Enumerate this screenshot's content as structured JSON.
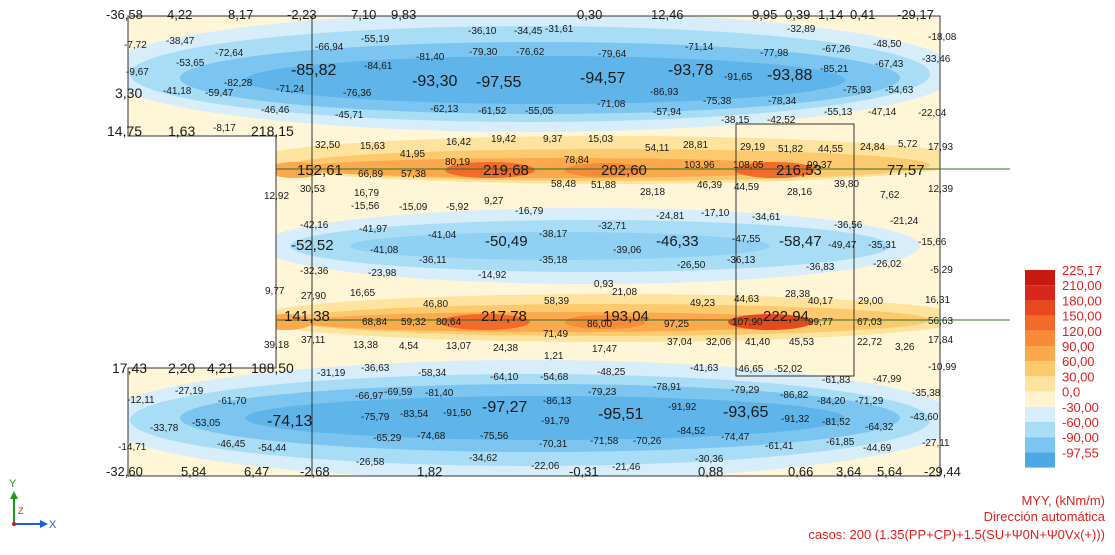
{
  "legend": {
    "entries": [
      {
        "value": "225,17",
        "color": "#c81812"
      },
      {
        "value": "210,00",
        "color": "#d7261a"
      },
      {
        "value": "180,00",
        "color": "#e8481e"
      },
      {
        "value": "150,00",
        "color": "#f36a2a"
      },
      {
        "value": "120,00",
        "color": "#f98a38"
      },
      {
        "value": "90,00",
        "color": "#fba94c"
      },
      {
        "value": "60,00",
        "color": "#fcca6c"
      },
      {
        "value": "30,00",
        "color": "#fde39e"
      },
      {
        "value": "0,0",
        "color": "#fff3cf"
      },
      {
        "value": "-30,00",
        "color": "#d7eefa"
      },
      {
        "value": "-60,00",
        "color": "#a9ddf6"
      },
      {
        "value": "-90,00",
        "color": "#7cc5f0"
      },
      {
        "value": "-97,55",
        "color": "#4ea8e6"
      }
    ]
  },
  "caption": {
    "line1": "MYY, (kNm/m)",
    "line2": "Dirección automática",
    "line3": "casos: 200 (1.35(PP+CP)+1.5(SU+Ψ0N+Ψ0Vx(+)))"
  },
  "axes": {
    "y_label": "Y",
    "z_label": "Z",
    "x_label": "X"
  },
  "values": [
    [
      "-36,58",
      106,
      19,
      13
    ],
    [
      "4,22",
      167,
      19,
      13
    ],
    [
      "8,17",
      228,
      19,
      13
    ],
    [
      "-2,23",
      287,
      19,
      13
    ],
    [
      "7,10",
      351,
      19,
      13
    ],
    [
      "9,83",
      391,
      19,
      13
    ],
    [
      "0,30",
      577,
      19,
      13
    ],
    [
      "12,46",
      651,
      19,
      13
    ],
    [
      "9,95",
      752,
      19,
      13
    ],
    [
      "0,39",
      785,
      19,
      13
    ],
    [
      "1,14",
      818,
      19,
      13
    ],
    [
      "0,41",
      850,
      19,
      13
    ],
    [
      "-29,17",
      897,
      19,
      13
    ],
    [
      "-36,10",
      468,
      34,
      10
    ],
    [
      "-34,45",
      514,
      34,
      10
    ],
    [
      "-31,61",
      545,
      32,
      10
    ],
    [
      "-32,89",
      787,
      32,
      10
    ],
    [
      "-18,08",
      928,
      40,
      10
    ],
    [
      "-7,72",
      124,
      48,
      10
    ],
    [
      "-38,47",
      166,
      44,
      10
    ],
    [
      "-55,19",
      361,
      42,
      10
    ],
    [
      "-66,94",
      315,
      50,
      10
    ],
    [
      "-72,64",
      215,
      56,
      10
    ],
    [
      "-81,40",
      416,
      60,
      10
    ],
    [
      "-79,30",
      469,
      55,
      10
    ],
    [
      "-76,62",
      516,
      55,
      10
    ],
    [
      "-79,64",
      598,
      57,
      10
    ],
    [
      "-71,14",
      685,
      50,
      10
    ],
    [
      "-77,98",
      760,
      56,
      10
    ],
    [
      "-67,26",
      822,
      52,
      10
    ],
    [
      "-48,50",
      873,
      47,
      10
    ],
    [
      "-53,65",
      176,
      66,
      10
    ],
    [
      "-84,61",
      364,
      69,
      10
    ],
    [
      "-67,43",
      875,
      67,
      10
    ],
    [
      "-33,46",
      922,
      62,
      10
    ],
    [
      "-9,67",
      126,
      75,
      10
    ],
    [
      "-85,82",
      291,
      75,
      16
    ],
    [
      "-93,30",
      412,
      86,
      16
    ],
    [
      "-97,55",
      476,
      87,
      16
    ],
    [
      "-94,57",
      580,
      83,
      16
    ],
    [
      "-93,78",
      668,
      75,
      16
    ],
    [
      "-91,65",
      724,
      80,
      10
    ],
    [
      "-93,88",
      767,
      80,
      16
    ],
    [
      "-85,21",
      820,
      72,
      10
    ],
    [
      "-82,28",
      224,
      86,
      10
    ],
    [
      "-71,24",
      276,
      92,
      10
    ],
    [
      "-76,36",
      343,
      96,
      10
    ],
    [
      "-86,93",
      650,
      95,
      10
    ],
    [
      "-75,93",
      843,
      93,
      10
    ],
    [
      "-54,63",
      885,
      93,
      10
    ],
    [
      "3,30",
      115,
      98,
      14
    ],
    [
      "-41,18",
      163,
      94,
      10
    ],
    [
      "-59,47",
      205,
      96,
      10
    ],
    [
      "-78,34",
      768,
      104,
      10
    ],
    [
      "-46,46",
      261,
      113,
      10
    ],
    [
      "-45,71",
      335,
      118,
      10
    ],
    [
      "-62,13",
      430,
      112,
      10
    ],
    [
      "-61,52",
      478,
      114,
      10
    ],
    [
      "-55,05",
      525,
      114,
      10
    ],
    [
      "-71,08",
      597,
      107,
      10
    ],
    [
      "-75,38",
      703,
      104,
      10
    ],
    [
      "-57,94",
      653,
      115,
      10
    ],
    [
      "-55,13",
      824,
      115,
      10
    ],
    [
      "-47,14",
      868,
      115,
      10
    ],
    [
      "-22,04",
      918,
      116,
      10
    ],
    [
      "-38,15",
      721,
      123,
      10
    ],
    [
      "-42,52",
      767,
      123,
      10
    ],
    [
      "14,75",
      107,
      136,
      14
    ],
    [
      "1,63",
      168,
      136,
      14
    ],
    [
      "-8,17",
      213,
      131,
      10
    ],
    [
      "218,15",
      251,
      136,
      14
    ],
    [
      "32,50",
      315,
      148,
      10
    ],
    [
      "15,63",
      360,
      149,
      10
    ],
    [
      "16,42",
      446,
      145,
      10
    ],
    [
      "19,42",
      491,
      142,
      10
    ],
    [
      "9,37",
      543,
      142,
      10
    ],
    [
      "15,03",
      588,
      142,
      10
    ],
    [
      "54,11",
      645,
      151,
      10
    ],
    [
      "28,81",
      683,
      148,
      10
    ],
    [
      "29,19",
      740,
      150,
      10
    ],
    [
      "51,82",
      778,
      152,
      10
    ],
    [
      "44,55",
      818,
      152,
      10
    ],
    [
      "24,84",
      860,
      150,
      10
    ],
    [
      "5,72",
      898,
      147,
      10
    ],
    [
      "17,93",
      928,
      150,
      10
    ],
    [
      "41,95",
      400,
      157,
      10
    ],
    [
      "80,19",
      445,
      165,
      10
    ],
    [
      "78,84",
      564,
      163,
      10
    ],
    [
      "103,96",
      684,
      168,
      10
    ],
    [
      "108,05",
      733,
      168,
      10
    ],
    [
      "99,37",
      807,
      168,
      10
    ],
    [
      "152,61",
      297,
      175,
      15
    ],
    [
      "66,89",
      358,
      177,
      10
    ],
    [
      "57,38",
      401,
      177,
      10
    ],
    [
      "219,68",
      483,
      175,
      15
    ],
    [
      "202,60",
      601,
      175,
      15
    ],
    [
      "216,53",
      776,
      175,
      15
    ],
    [
      "77,57",
      887,
      175,
      15
    ],
    [
      "30,53",
      300,
      192,
      10
    ],
    [
      "58,48",
      551,
      187,
      10
    ],
    [
      "51,88",
      591,
      188,
      10
    ],
    [
      "28,18",
      640,
      195,
      10
    ],
    [
      "46,39",
      697,
      188,
      10
    ],
    [
      "44,59",
      734,
      190,
      10
    ],
    [
      "28,16",
      787,
      195,
      10
    ],
    [
      "39,80",
      834,
      187,
      10
    ],
    [
      "12,39",
      928,
      192,
      10
    ],
    [
      "12,92",
      264,
      199,
      10
    ],
    [
      "16,79",
      354,
      196,
      10
    ],
    [
      "9,27",
      484,
      204,
      10
    ],
    [
      "7,62",
      880,
      198,
      10
    ],
    [
      "-15,56",
      351,
      209,
      10
    ],
    [
      "-15,09",
      399,
      210,
      10
    ],
    [
      "-5,92",
      446,
      210,
      10
    ],
    [
      "-16,79",
      515,
      214,
      10
    ],
    [
      "-24,81",
      656,
      219,
      10
    ],
    [
      "-17,10",
      701,
      216,
      10
    ],
    [
      "-34,61",
      752,
      220,
      10
    ],
    [
      "-21,24",
      890,
      224,
      10
    ],
    [
      "-42,16",
      300,
      228,
      10
    ],
    [
      "-36,56",
      834,
      228,
      10
    ],
    [
      "-32,71",
      598,
      229,
      10
    ],
    [
      "-41,97",
      359,
      232,
      10
    ],
    [
      "-41,04",
      428,
      238,
      10
    ],
    [
      "-38,17",
      539,
      237,
      10
    ],
    [
      "-52,52",
      291,
      250,
      15
    ],
    [
      "-41,08",
      370,
      253,
      10
    ],
    [
      "-50,49",
      485,
      246,
      15
    ],
    [
      "-39,06",
      613,
      253,
      10
    ],
    [
      "-46,33",
      656,
      246,
      15
    ],
    [
      "-47,55",
      732,
      242,
      10
    ],
    [
      "-58,47",
      779,
      246,
      15
    ],
    [
      "-49,47",
      828,
      248,
      10
    ],
    [
      "-35,31",
      868,
      248,
      10
    ],
    [
      "-15,66",
      918,
      245,
      10
    ],
    [
      "-36,11",
      419,
      263,
      10
    ],
    [
      "-35,18",
      539,
      263,
      10
    ],
    [
      "-26,50",
      677,
      268,
      10
    ],
    [
      "-36,13",
      727,
      263,
      10
    ],
    [
      "-36,83",
      806,
      270,
      10
    ],
    [
      "-26,02",
      873,
      267,
      10
    ],
    [
      "-5,29",
      930,
      273,
      10
    ],
    [
      "-32,36",
      300,
      274,
      10
    ],
    [
      "-23,98",
      368,
      276,
      10
    ],
    [
      "-14,92",
      478,
      278,
      10
    ],
    [
      "0,93",
      594,
      287,
      10
    ],
    [
      "21,08",
      612,
      295,
      10
    ],
    [
      "9,77",
      265,
      294,
      10
    ],
    [
      "27,90",
      301,
      299,
      10
    ],
    [
      "16,65",
      350,
      296,
      10
    ],
    [
      "28,38",
      785,
      297,
      10
    ],
    [
      "29,00",
      858,
      304,
      10
    ],
    [
      "16,31",
      925,
      303,
      10
    ],
    [
      "46,80",
      423,
      307,
      10
    ],
    [
      "58,39",
      544,
      304,
      10
    ],
    [
      "49,23",
      690,
      306,
      10
    ],
    [
      "44,63",
      734,
      302,
      10
    ],
    [
      "40,17",
      808,
      304,
      10
    ],
    [
      "141,38",
      284,
      321,
      15
    ],
    [
      "68,84",
      362,
      325,
      10
    ],
    [
      "59,32",
      401,
      325,
      10
    ],
    [
      "80,64",
      436,
      325,
      10
    ],
    [
      "217,78",
      481,
      321,
      15
    ],
    [
      "86,00",
      587,
      327,
      10
    ],
    [
      "193,04",
      603,
      321,
      15
    ],
    [
      "97,25",
      664,
      327,
      10
    ],
    [
      "107,90",
      732,
      325,
      10
    ],
    [
      "222,94",
      763,
      321,
      15
    ],
    [
      "99,77",
      808,
      325,
      10
    ],
    [
      "67,03",
      857,
      325,
      10
    ],
    [
      "56,63",
      928,
      324,
      10
    ],
    [
      "71,49",
      543,
      337,
      10
    ],
    [
      "39,18",
      264,
      348,
      10
    ],
    [
      "37,11",
      301,
      343,
      10
    ],
    [
      "13,38",
      353,
      348,
      10
    ],
    [
      "4,54",
      399,
      349,
      10
    ],
    [
      "13,07",
      446,
      349,
      10
    ],
    [
      "24,38",
      493,
      351,
      10
    ],
    [
      "17,47",
      592,
      352,
      10
    ],
    [
      "37,04",
      667,
      345,
      10
    ],
    [
      "32,06",
      706,
      345,
      10
    ],
    [
      "41,40",
      745,
      345,
      10
    ],
    [
      "45,53",
      789,
      345,
      10
    ],
    [
      "22,72",
      857,
      345,
      10
    ],
    [
      "3,26",
      895,
      350,
      10
    ],
    [
      "17,84",
      928,
      343,
      10
    ],
    [
      "1,21",
      544,
      359,
      10
    ],
    [
      "17,43",
      112,
      373,
      14
    ],
    [
      "2,20",
      168,
      373,
      14
    ],
    [
      "4,21",
      207,
      373,
      14
    ],
    [
      "188,50",
      251,
      373,
      14
    ],
    [
      "-31,19",
      317,
      376,
      10
    ],
    [
      "-36,63",
      361,
      371,
      10
    ],
    [
      "-58,34",
      418,
      376,
      10
    ],
    [
      "-64,10",
      490,
      380,
      10
    ],
    [
      "-54,68",
      540,
      380,
      10
    ],
    [
      "-48,25",
      597,
      375,
      10
    ],
    [
      "-41,63",
      690,
      371,
      10
    ],
    [
      "-46,65",
      735,
      372,
      10
    ],
    [
      "-52,02",
      774,
      372,
      10
    ],
    [
      "-61,83",
      822,
      383,
      10
    ],
    [
      "-47,99",
      873,
      382,
      10
    ],
    [
      "-10,99",
      928,
      370,
      10
    ],
    [
      "-27,19",
      175,
      394,
      10
    ],
    [
      "-66,97",
      355,
      399,
      10
    ],
    [
      "-69,59",
      384,
      395,
      10
    ],
    [
      "-81,40",
      425,
      396,
      10
    ],
    [
      "-79,23",
      588,
      395,
      10
    ],
    [
      "-78,91",
      653,
      390,
      10
    ],
    [
      "-79,29",
      731,
      393,
      10
    ],
    [
      "-86,82",
      780,
      398,
      10
    ],
    [
      "-84,20",
      817,
      404,
      10
    ],
    [
      "-71,29",
      855,
      404,
      10
    ],
    [
      "-35,38",
      912,
      396,
      10
    ],
    [
      "-12,11",
      127,
      403,
      10
    ],
    [
      "-61,70",
      218,
      404,
      10
    ],
    [
      "-97,27",
      482,
      412,
      16
    ],
    [
      "-86,13",
      543,
      404,
      10
    ],
    [
      "-95,51",
      598,
      419,
      16
    ],
    [
      "-91,92",
      668,
      410,
      10
    ],
    [
      "-93,65",
      723,
      417,
      16
    ],
    [
      "-33,78",
      150,
      431,
      10
    ],
    [
      "-53,05",
      192,
      426,
      10
    ],
    [
      "-74,13",
      267,
      426,
      16
    ],
    [
      "-75,79",
      361,
      420,
      10
    ],
    [
      "-83,54",
      400,
      417,
      10
    ],
    [
      "-91,50",
      443,
      416,
      10
    ],
    [
      "-91,79",
      541,
      424,
      10
    ],
    [
      "-91,32",
      781,
      422,
      10
    ],
    [
      "-81,52",
      822,
      425,
      10
    ],
    [
      "-64,32",
      865,
      430,
      10
    ],
    [
      "-43,60",
      910,
      420,
      10
    ],
    [
      "-84,52",
      677,
      434,
      10
    ],
    [
      "-74,47",
      721,
      440,
      10
    ],
    [
      "-14,71",
      118,
      450,
      10
    ],
    [
      "-46,45",
      217,
      447,
      10
    ],
    [
      "-54,44",
      258,
      451,
      10
    ],
    [
      "-65,29",
      373,
      441,
      10
    ],
    [
      "-74,68",
      417,
      439,
      10
    ],
    [
      "-75,56",
      480,
      439,
      10
    ],
    [
      "-70,31",
      539,
      447,
      10
    ],
    [
      "-71,58",
      590,
      444,
      10
    ],
    [
      "-70,26",
      633,
      444,
      10
    ],
    [
      "-61,41",
      765,
      449,
      10
    ],
    [
      "-61,85",
      826,
      445,
      10
    ],
    [
      "-44,69",
      863,
      451,
      10
    ],
    [
      "-27,11",
      922,
      446,
      10
    ],
    [
      "-26,58",
      356,
      465,
      10
    ],
    [
      "-34,62",
      469,
      461,
      10
    ],
    [
      "-22,06",
      531,
      469,
      10
    ],
    [
      "-21,46",
      612,
      470,
      10
    ],
    [
      "-30,36",
      695,
      462,
      10
    ],
    [
      "-32,60",
      106,
      476,
      13
    ],
    [
      "5,84",
      181,
      476,
      13
    ],
    [
      "6,47",
      244,
      476,
      13
    ],
    [
      "-2,68",
      300,
      476,
      13
    ],
    [
      "1,82",
      417,
      476,
      13
    ],
    [
      "-0,31",
      569,
      476,
      13
    ],
    [
      "0,88",
      698,
      476,
      13
    ],
    [
      "0,66",
      788,
      476,
      13
    ],
    [
      "3,64",
      836,
      476,
      13
    ],
    [
      "5,64",
      877,
      476,
      13
    ],
    [
      "-29,44",
      924,
      476,
      13
    ]
  ]
}
